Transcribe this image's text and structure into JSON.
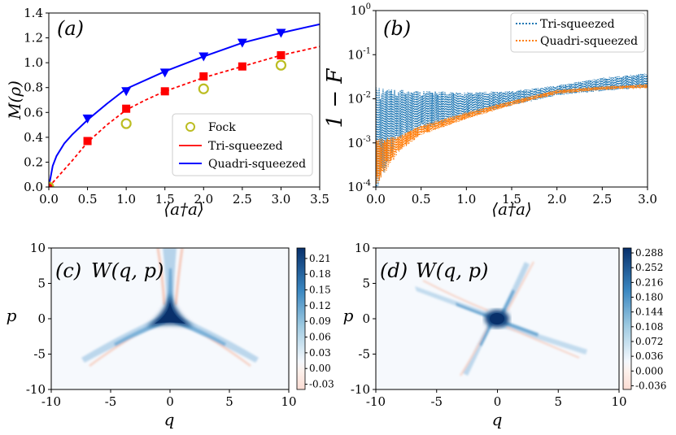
{
  "chart_data": [
    {
      "id": "a",
      "type": "line",
      "panel_label": "(a)",
      "xlabel": "⟨a†a⟩",
      "ylabel": "M(ρ)",
      "xlim": [
        0,
        3.5
      ],
      "ylim": [
        0,
        1.4
      ],
      "xticks": [
        "0.0",
        "0.5",
        "1.0",
        "1.5",
        "2.0",
        "2.5",
        "3.0",
        "3.5"
      ],
      "yticks": [
        "0.0",
        "0.2",
        "0.4",
        "0.6",
        "0.8",
        "1.0",
        "1.2",
        "1.4"
      ],
      "legend_position": "lower-right",
      "colors": {
        "fock": "#bcbd22",
        "tri": "#ff0000",
        "quadri": "#0000ff"
      },
      "series": [
        {
          "name": "Fock",
          "style": "open-circle",
          "x": [
            0,
            1,
            2,
            3
          ],
          "y": [
            0.0,
            0.51,
            0.79,
            0.98
          ]
        },
        {
          "name": "Tri-squeezed",
          "style": "dashed-line",
          "x": [
            0,
            0.1,
            0.2,
            0.3,
            0.5,
            0.75,
            1.0,
            1.25,
            1.5,
            2.0,
            2.5,
            3.0,
            3.5
          ],
          "y": [
            0.0,
            0.07,
            0.14,
            0.21,
            0.36,
            0.5,
            0.62,
            0.7,
            0.77,
            0.88,
            0.97,
            1.06,
            1.13
          ]
        },
        {
          "name": "Tri-squeezed points",
          "style": "square",
          "x": [
            0,
            0.5,
            1.0,
            1.5,
            2.0,
            2.5,
            3.0
          ],
          "y": [
            0.0,
            0.37,
            0.63,
            0.77,
            0.89,
            0.97,
            1.06
          ]
        },
        {
          "name": "Quadri-squeezed",
          "style": "solid-line",
          "x": [
            0,
            0.05,
            0.1,
            0.2,
            0.3,
            0.5,
            0.75,
            1.0,
            1.5,
            2.0,
            2.5,
            3.0,
            3.5
          ],
          "y": [
            0.0,
            0.17,
            0.25,
            0.35,
            0.42,
            0.54,
            0.67,
            0.79,
            0.93,
            1.05,
            1.16,
            1.24,
            1.31
          ]
        },
        {
          "name": "Quadri-squeezed points",
          "style": "triangle-down",
          "x": [
            0.5,
            1.0,
            1.5,
            2.0,
            2.5,
            3.0
          ],
          "y": [
            0.55,
            0.77,
            0.92,
            1.05,
            1.16,
            1.24
          ]
        }
      ],
      "legend": [
        "Fock",
        "Tri-squeezed",
        "Quadri-squeezed"
      ]
    },
    {
      "id": "b",
      "type": "line",
      "panel_label": "(b)",
      "xlabel": "⟨a†a⟩",
      "ylabel": "1 − F",
      "yscale": "log",
      "xlim": [
        0,
        3.0
      ],
      "ylim": [
        0.0001,
        1
      ],
      "xticks": [
        "0.0",
        "0.5",
        "1.0",
        "1.5",
        "2.0",
        "2.5",
        "3.0"
      ],
      "ytick_mantissa": "10",
      "ytick_exponents": [
        "0",
        "-1",
        "-2",
        "-3",
        "-4"
      ],
      "legend_position": "top-right",
      "colors": {
        "tri": "#1f77b4",
        "quadri": "#ff7f0e"
      },
      "series": [
        {
          "name": "Tri-squeezed",
          "style": "dotted-oscillating",
          "x": [
            0,
            0.25,
            0.5,
            1.0,
            1.5,
            2.0,
            2.5,
            3.0
          ],
          "y_low": [
            8e-05,
            0.0012,
            0.002,
            0.004,
            0.007,
            0.012,
            0.015,
            0.018
          ],
          "y_high": [
            0.018,
            0.016,
            0.015,
            0.014,
            0.015,
            0.02,
            0.03,
            0.038
          ]
        },
        {
          "name": "Quadri-squeezed",
          "style": "dotted-band",
          "x": [
            0,
            0.25,
            0.5,
            1.0,
            1.5,
            2.0,
            2.5,
            3.0
          ],
          "y_low": [
            0.0001,
            0.0006,
            0.0015,
            0.0035,
            0.007,
            0.013,
            0.016,
            0.018
          ],
          "y_high": [
            0.0012,
            0.0014,
            0.0025,
            0.005,
            0.009,
            0.016,
            0.019,
            0.021
          ]
        }
      ],
      "legend": [
        "Tri-squeezed",
        "Quadri-squeezed"
      ]
    },
    {
      "id": "c",
      "type": "heatmap",
      "panel_label": "(c)",
      "title": "W(q, p)",
      "xlabel": "q",
      "ylabel": "p",
      "xlim": [
        -10,
        10
      ],
      "ylim": [
        -10,
        10
      ],
      "xticks": [
        "-10",
        "-5",
        "0",
        "5",
        "10"
      ],
      "yticks": [
        "10",
        "5",
        "0",
        "-5",
        "-10"
      ],
      "symmetry": "three-fold",
      "colorbar_ticks": [
        "0.21",
        "0.18",
        "0.15",
        "0.12",
        "0.09",
        "0.06",
        "0.03",
        "0.00",
        "-0.03"
      ],
      "colorbar_range": [
        -0.04,
        0.23
      ]
    },
    {
      "id": "d",
      "type": "heatmap",
      "panel_label": "(d)",
      "title": "W(q, p)",
      "xlabel": "q",
      "ylabel": "p",
      "xlim": [
        -10,
        10
      ],
      "ylim": [
        -10,
        10
      ],
      "xticks": [
        "-10",
        "-5",
        "0",
        "5",
        "10"
      ],
      "yticks": [
        "10",
        "5",
        "0",
        "-5",
        "-10"
      ],
      "symmetry": "four-fold",
      "colorbar_ticks": [
        "0.288",
        "0.252",
        "0.216",
        "0.180",
        "0.144",
        "0.108",
        "0.072",
        "0.036",
        "0.000",
        "-0.036"
      ],
      "colorbar_range": [
        -0.045,
        0.3
      ]
    }
  ]
}
